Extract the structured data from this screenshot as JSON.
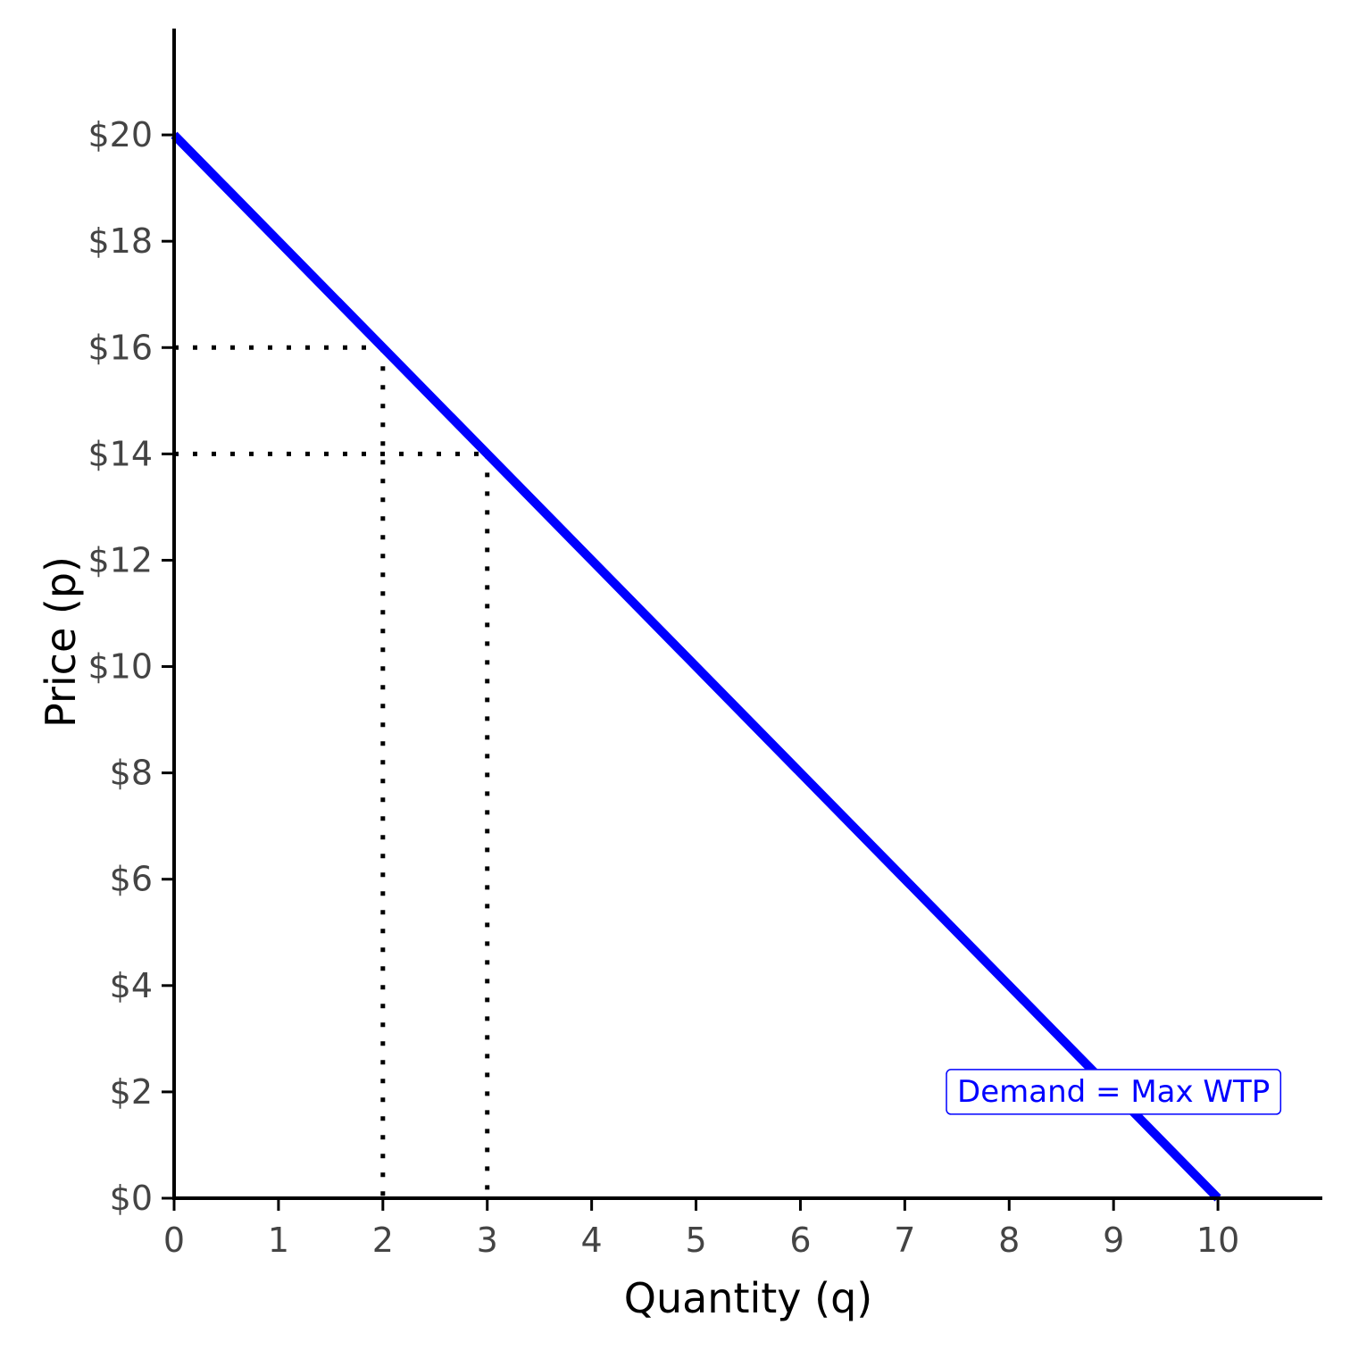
{
  "chart_data": {
    "type": "line",
    "title": "",
    "xlabel": "Quantity (q)",
    "ylabel": "Price (p)",
    "xlim": [
      0,
      11
    ],
    "ylim": [
      0,
      22
    ],
    "x_ticks": [
      0,
      1,
      2,
      3,
      4,
      5,
      6,
      7,
      8,
      9,
      10
    ],
    "y_ticks": [
      0,
      2,
      4,
      6,
      8,
      10,
      12,
      14,
      16,
      18,
      20
    ],
    "y_tick_labels": [
      "$0",
      "$2",
      "$4",
      "$6",
      "$8",
      "$10",
      "$12",
      "$14",
      "$16",
      "$18",
      "$20"
    ],
    "grid": false,
    "series": [
      {
        "x": [
          0,
          10
        ],
        "y": [
          20,
          0
        ],
        "color": "#0000ff"
      }
    ],
    "guides": [
      {
        "x": 2,
        "y": 16
      },
      {
        "x": 3,
        "y": 14
      }
    ],
    "annotation": {
      "text": "Demand = Max WTP",
      "x": 9,
      "y": 2,
      "color": "#0000ff"
    }
  }
}
